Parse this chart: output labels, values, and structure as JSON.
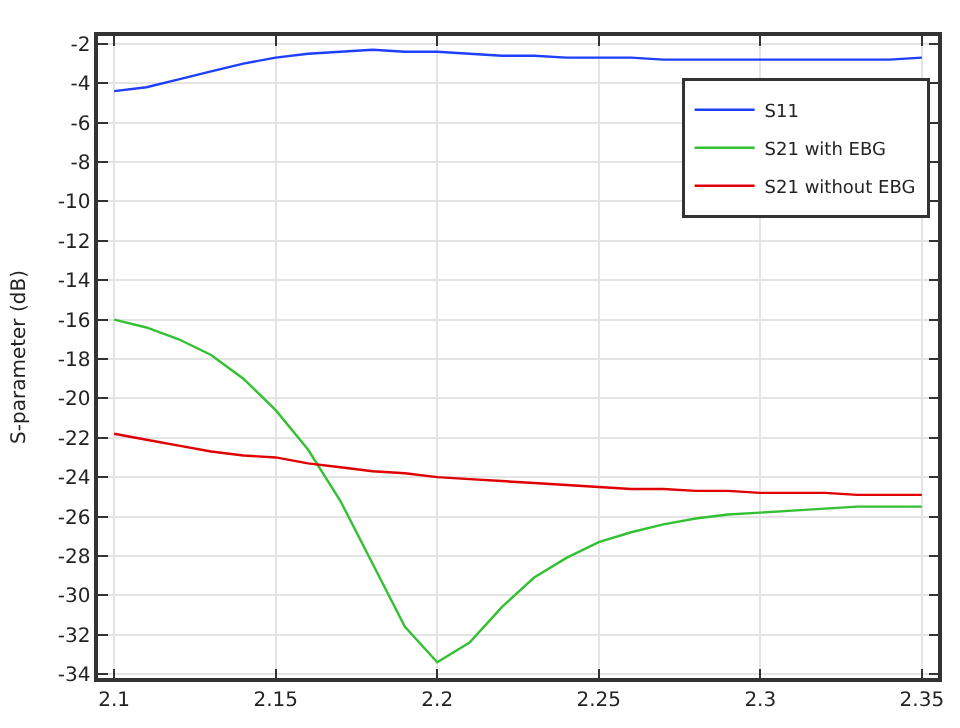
{
  "chart_data": {
    "type": "line",
    "ylabel": "S-parameter (dB)",
    "x": [
      2.1,
      2.11,
      2.12,
      2.13,
      2.14,
      2.15,
      2.16,
      2.17,
      2.18,
      2.19,
      2.2,
      2.21,
      2.22,
      2.23,
      2.24,
      2.25,
      2.26,
      2.27,
      2.28,
      2.29,
      2.3,
      2.31,
      2.32,
      2.33,
      2.34,
      2.35
    ],
    "series": [
      {
        "name": "S11",
        "color": "#1f3fff",
        "values": [
          -4.4,
          -4.2,
          -3.8,
          -3.4,
          -3.0,
          -2.7,
          -2.5,
          -2.4,
          -2.3,
          -2.4,
          -2.4,
          -2.5,
          -2.6,
          -2.6,
          -2.7,
          -2.7,
          -2.7,
          -2.8,
          -2.8,
          -2.8,
          -2.8,
          -2.8,
          -2.8,
          -2.8,
          -2.8,
          -2.7
        ]
      },
      {
        "name": "S21 with EBG",
        "color": "#33c033",
        "values": [
          -16.0,
          -16.4,
          -17.0,
          -17.8,
          -19.0,
          -20.6,
          -22.6,
          -25.2,
          -28.4,
          -31.6,
          -33.4,
          -32.4,
          -30.6,
          -29.1,
          -28.1,
          -27.3,
          -26.8,
          -26.4,
          -26.1,
          -25.9,
          -25.8,
          -25.7,
          -25.6,
          -25.5,
          -25.5,
          -25.5
        ]
      },
      {
        "name": "S21 without EBG",
        "color": "#e00000",
        "values": [
          -21.8,
          -22.1,
          -22.4,
          -22.7,
          -22.9,
          -23.0,
          -23.3,
          -23.5,
          -23.7,
          -23.8,
          -24.0,
          -24.1,
          -24.2,
          -24.3,
          -24.4,
          -24.5,
          -24.6,
          -24.6,
          -24.7,
          -24.7,
          -24.8,
          -24.8,
          -24.8,
          -24.9,
          -24.9,
          -24.9
        ]
      }
    ],
    "xlim": [
      2.095,
      2.355
    ],
    "ylim": [
      -34.2,
      -1.6
    ],
    "xticks": [
      2.1,
      2.15,
      2.2,
      2.25,
      2.3,
      2.35
    ],
    "yticks": [
      -34,
      -32,
      -30,
      -28,
      -26,
      -24,
      -22,
      -20,
      -18,
      -16,
      -14,
      -12,
      -10,
      -8,
      -6,
      -4,
      -2
    ],
    "grid": true,
    "legend": "top right",
    "marker": "none",
    "line_style": "solid"
  }
}
